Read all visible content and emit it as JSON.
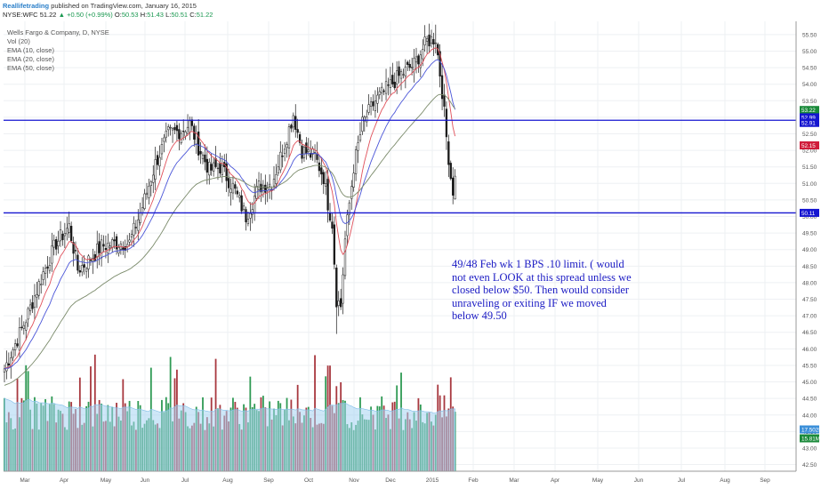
{
  "header": {
    "author": "Reallifetrading",
    "published": "published on TradingView.com, January 16, 2015",
    "symbol": "NYSE:WFC",
    "last": "51.22",
    "change": "+0.50 (+0.99%)",
    "open_label": "O:",
    "open": "50.53",
    "high_label": "H:",
    "high": "51.43",
    "low_label": "L:",
    "low": "50.51",
    "close_label": "C:",
    "close": "51.22"
  },
  "legend": {
    "title": "Wells Fargo & Company, D, NYSE",
    "items": [
      "Vol (20)",
      "EMA (10, close)",
      "EMA (20, close)",
      "EMA (50, close)"
    ]
  },
  "annotation": "49/48 Feb wk 1 BPS .10 limit. ( would not even LOOK at this spread unless we closed below $50. Then would consider unraveling or exiting IF we moved below 49.50",
  "colors": {
    "up": "#1a1a1a",
    "down": "#1a1a1a",
    "ema10": "#e0505a",
    "ema20": "#4a55d8",
    "ema50": "#7a8a6a",
    "hline": "#1515d0",
    "vol_green": "#2f9a54",
    "vol_red": "#a8383f",
    "vol_ma_fill": "#a6d4f2",
    "tag_green": "#1a8a3a",
    "tag_blue": "#1515d0",
    "tag_red": "#d01c3a",
    "tag_vol_blue": "#3b8fd9",
    "tag_vol_green": "#1a8a3a"
  },
  "chart_data": {
    "type": "candlestick",
    "title": "Wells Fargo & Company, D, NYSE",
    "x_ticks": [
      "Mar",
      "Apr",
      "May",
      "Jun",
      "Jul",
      "Aug",
      "Sep",
      "Oct",
      "Nov",
      "Dec",
      "2015",
      "Feb",
      "Mar",
      "Apr",
      "May",
      "Jun",
      "Jul",
      "Aug",
      "Sep"
    ],
    "y_ticks": [
      "55.50",
      "55.00",
      "54.50",
      "54.00",
      "53.50",
      "53.00",
      "52.50",
      "52.00",
      "51.50",
      "51.00",
      "50.50",
      "50.00",
      "49.50",
      "49.00",
      "48.50",
      "48.00",
      "47.50",
      "47.00",
      "46.50",
      "46.00",
      "45.50",
      "45.00",
      "44.50",
      "44.00",
      "43.50",
      "43.00",
      "42.50"
    ],
    "ylim": [
      42.3,
      55.9
    ],
    "horizontal_lines": [
      52.91,
      50.11
    ],
    "price_tags": [
      {
        "label": "53.22",
        "value": 53.22,
        "color": "green"
      },
      {
        "label": "52.99",
        "value": 52.99,
        "color": "blue"
      },
      {
        "label": "52.91",
        "value": 52.91,
        "color": "blue"
      },
      {
        "label": "52.15",
        "value": 52.15,
        "color": "red"
      },
      {
        "label": "50.11",
        "value": 50.11,
        "color": "blue"
      },
      {
        "label": "17.502M",
        "value": 43.75,
        "color": "vol_blue"
      },
      {
        "label": "15.81M",
        "value": 43.5,
        "color": "vol_green"
      }
    ],
    "anchors": [
      {
        "d": 0,
        "c": 45.4
      },
      {
        "d": 10,
        "c": 46.9
      },
      {
        "d": 18,
        "c": 48.3
      },
      {
        "d": 24,
        "c": 49.2
      },
      {
        "d": 30,
        "c": 49.7
      },
      {
        "d": 34,
        "c": 48.4
      },
      {
        "d": 38,
        "c": 48.6
      },
      {
        "d": 45,
        "c": 49.1
      },
      {
        "d": 52,
        "c": 49.2
      },
      {
        "d": 58,
        "c": 49.2
      },
      {
        "d": 64,
        "c": 50.3
      },
      {
        "d": 70,
        "c": 51.6
      },
      {
        "d": 76,
        "c": 52.5
      },
      {
        "d": 82,
        "c": 52.6
      },
      {
        "d": 86,
        "c": 52.8
      },
      {
        "d": 90,
        "c": 52.1
      },
      {
        "d": 95,
        "c": 51.4
      },
      {
        "d": 100,
        "c": 51.5
      },
      {
        "d": 106,
        "c": 50.9
      },
      {
        "d": 112,
        "c": 50.0
      },
      {
        "d": 118,
        "c": 50.9
      },
      {
        "d": 124,
        "c": 51.0
      },
      {
        "d": 130,
        "c": 52.2
      },
      {
        "d": 134,
        "c": 53.1
      },
      {
        "d": 138,
        "c": 52.0
      },
      {
        "d": 144,
        "c": 51.8
      },
      {
        "d": 148,
        "c": 51.2
      },
      {
        "d": 150,
        "c": 50.4
      },
      {
        "d": 152,
        "c": 49.8
      },
      {
        "d": 154,
        "c": 47.5
      },
      {
        "d": 156,
        "c": 47.3
      },
      {
        "d": 158,
        "c": 49.3
      },
      {
        "d": 162,
        "c": 51.5
      },
      {
        "d": 166,
        "c": 52.8
      },
      {
        "d": 172,
        "c": 53.5
      },
      {
        "d": 178,
        "c": 53.9
      },
      {
        "d": 184,
        "c": 54.3
      },
      {
        "d": 190,
        "c": 54.6
      },
      {
        "d": 196,
        "c": 55.3
      },
      {
        "d": 200,
        "c": 55.4
      },
      {
        "d": 203,
        "c": 53.8
      },
      {
        "d": 205,
        "c": 52.4
      },
      {
        "d": 207,
        "c": 51.2
      },
      {
        "d": 208,
        "c": 50.8
      },
      {
        "d": 209,
        "c": 51.22
      }
    ],
    "volume": {
      "label": "Vol (20)",
      "last": "15.81M",
      "ma_last": "17.502M"
    },
    "ema_periods": [
      10,
      20,
      50
    ]
  }
}
